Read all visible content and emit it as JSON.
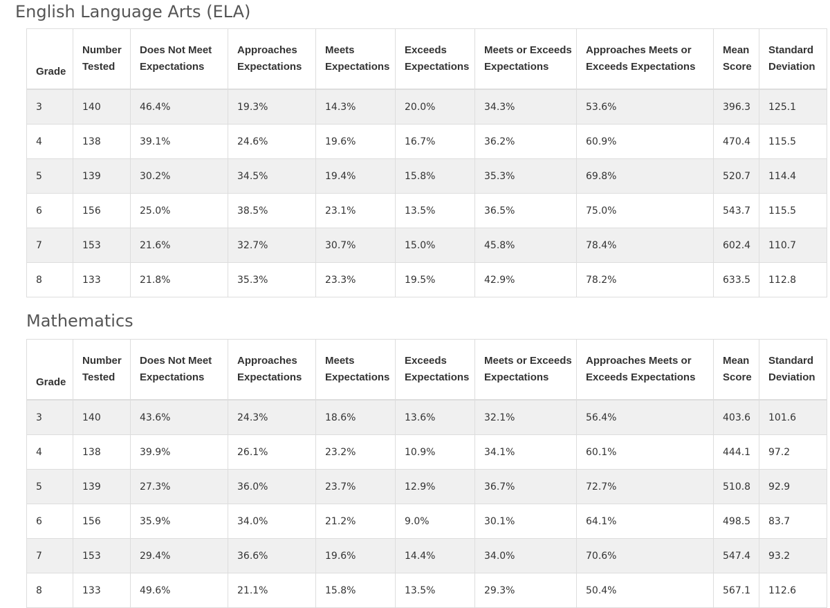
{
  "ela": {
    "title": "English Language Arts (ELA)",
    "headers": {
      "grade": "Grade",
      "number_tested": "Number Tested",
      "does_not_meet": "Does Not Meet Expectations",
      "approaches": "Approaches Expectations",
      "meets": "Meets Expectations",
      "exceeds": "Exceeds Expectations",
      "meets_or_exceeds": "Meets or Exceeds Expectations",
      "approaches_meets_exceeds": "Approaches Meets or Exceeds Expectations",
      "mean_score": "Mean Score",
      "std_dev": "Standard Deviation"
    },
    "rows": [
      [
        "3",
        "140",
        "46.4%",
        "19.3%",
        "14.3%",
        "20.0%",
        "34.3%",
        "53.6%",
        "396.3",
        "125.1"
      ],
      [
        "4",
        "138",
        "39.1%",
        "24.6%",
        "19.6%",
        "16.7%",
        "36.2%",
        "60.9%",
        "470.4",
        "115.5"
      ],
      [
        "5",
        "139",
        "30.2%",
        "34.5%",
        "19.4%",
        "15.8%",
        "35.3%",
        "69.8%",
        "520.7",
        "114.4"
      ],
      [
        "6",
        "156",
        "25.0%",
        "38.5%",
        "23.1%",
        "13.5%",
        "36.5%",
        "75.0%",
        "543.7",
        "115.5"
      ],
      [
        "7",
        "153",
        "21.6%",
        "32.7%",
        "30.7%",
        "15.0%",
        "45.8%",
        "78.4%",
        "602.4",
        "110.7"
      ],
      [
        "8",
        "133",
        "21.8%",
        "35.3%",
        "23.3%",
        "19.5%",
        "42.9%",
        "78.2%",
        "633.5",
        "112.8"
      ]
    ]
  },
  "math": {
    "title": "Mathematics",
    "headers": {
      "grade": "Grade",
      "number_tested": "Number Tested",
      "does_not_meet": "Does Not Meet Expectations",
      "approaches": "Approaches Expectations",
      "meets": "Meets Expectations",
      "exceeds": "Exceeds Expectations",
      "meets_or_exceeds": "Meets or Exceeds Expectations",
      "approaches_meets_exceeds": "Approaches Meets or Exceeds Expectations",
      "mean_score": "Mean Score",
      "std_dev": "Standard Deviation"
    },
    "rows": [
      [
        "3",
        "140",
        "43.6%",
        "24.3%",
        "18.6%",
        "13.6%",
        "32.1%",
        "56.4%",
        "403.6",
        "101.6"
      ],
      [
        "4",
        "138",
        "39.9%",
        "26.1%",
        "23.2%",
        "10.9%",
        "34.1%",
        "60.1%",
        "444.1",
        "97.2"
      ],
      [
        "5",
        "139",
        "27.3%",
        "36.0%",
        "23.7%",
        "12.9%",
        "36.7%",
        "72.7%",
        "510.8",
        "92.9"
      ],
      [
        "6",
        "156",
        "35.9%",
        "34.0%",
        "21.2%",
        "9.0%",
        "30.1%",
        "64.1%",
        "498.5",
        "83.7"
      ],
      [
        "7",
        "153",
        "29.4%",
        "36.6%",
        "19.6%",
        "14.4%",
        "34.0%",
        "70.6%",
        "547.4",
        "93.2"
      ],
      [
        "8",
        "133",
        "49.6%",
        "21.1%",
        "15.8%",
        "13.5%",
        "29.3%",
        "50.4%",
        "567.1",
        "112.6"
      ]
    ]
  },
  "colors": {
    "stripe": "#f0f0f0",
    "border": "#dddddd",
    "title": "#555555",
    "text": "#333333"
  }
}
